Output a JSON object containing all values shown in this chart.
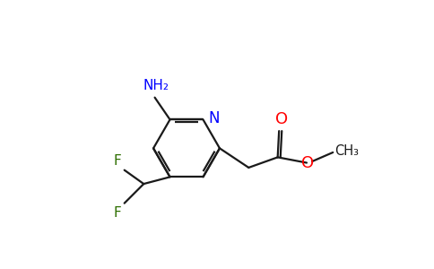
{
  "bg_color": "#ffffff",
  "bond_color": "#1a1a1a",
  "N_color": "#0000ff",
  "O_color": "#ff0000",
  "F_color": "#2d6e00",
  "NH2_text": "NH₂",
  "N_text": "N",
  "O_text": "O",
  "CH3_text": "CH₃",
  "F_text": "F",
  "figsize": [
    4.84,
    3.0
  ],
  "dpi": 100
}
